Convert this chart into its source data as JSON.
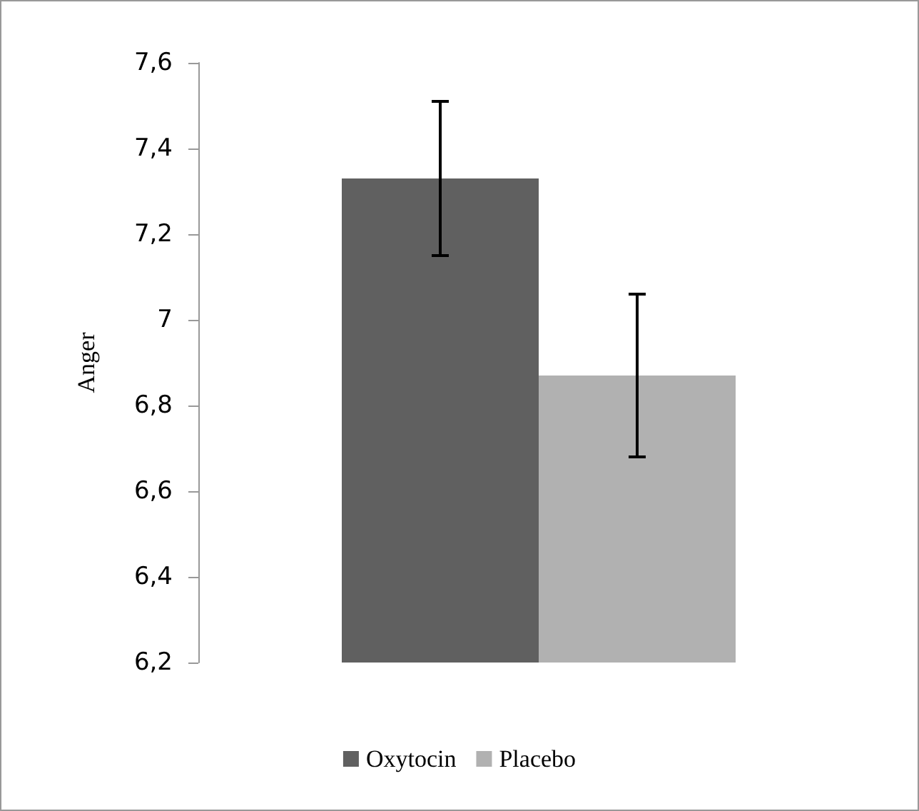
{
  "chart_data": {
    "type": "bar",
    "ylabel": "Anger",
    "categories": [
      null
    ],
    "series": [
      {
        "name": "Oxytocin",
        "color": "#606060",
        "values": [
          7.33
        ],
        "errors": [
          0.18
        ]
      },
      {
        "name": "Placebo",
        "color": "#b1b1b1",
        "values": [
          6.87
        ],
        "errors": [
          0.19
        ]
      }
    ],
    "ylim": [
      6.2,
      7.6
    ],
    "yticks": [
      {
        "value": 6.2,
        "label": "6,2"
      },
      {
        "value": 6.4,
        "label": "6,4"
      },
      {
        "value": 6.6,
        "label": "6,6"
      },
      {
        "value": 6.8,
        "label": "6,8"
      },
      {
        "value": 7,
        "label": "7"
      },
      {
        "value": 7.2,
        "label": "7,2"
      },
      {
        "value": 7.4,
        "label": "7,4"
      },
      {
        "value": 7.6,
        "label": "7,6"
      }
    ],
    "grid": false,
    "legend": "bottom"
  }
}
